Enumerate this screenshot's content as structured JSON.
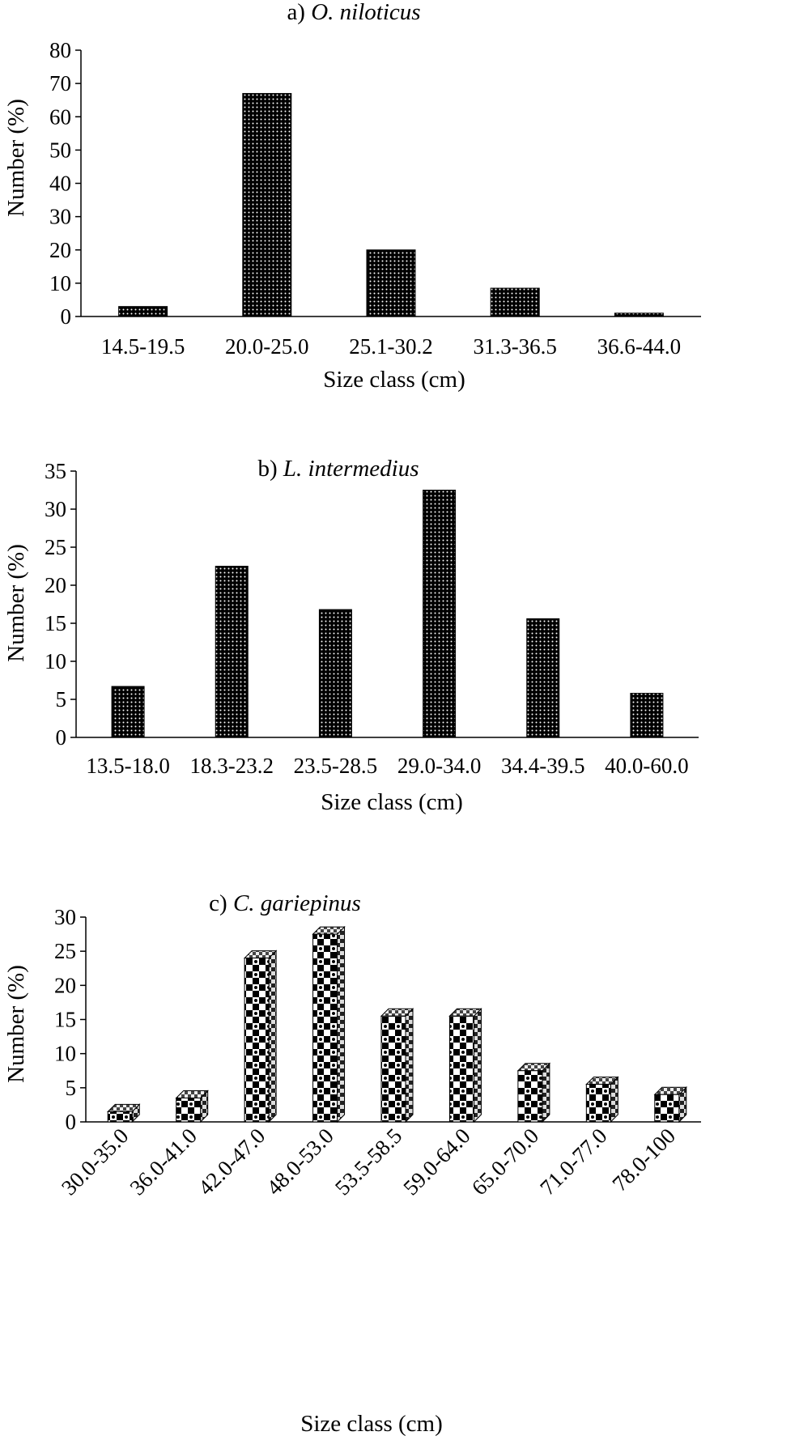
{
  "chart_data": [
    {
      "type": "bar",
      "title_prefix": "a) ",
      "title_species": "O. niloticus",
      "xlabel": "Size class (cm)",
      "ylabel": "Number (%)",
      "ylim": [
        0,
        80
      ],
      "yticks": [
        0,
        10,
        20,
        30,
        40,
        50,
        60,
        70,
        80
      ],
      "categories": [
        "14.5-19.5",
        "20.0-25.0",
        "25.1-30.2",
        "31.3-36.5",
        "36.6-44.0"
      ],
      "values": [
        3,
        67,
        20,
        8.5,
        1
      ],
      "grid": false,
      "fill": "dotted-black"
    },
    {
      "type": "bar",
      "title_prefix": "b) ",
      "title_species": "L. intermedius",
      "xlabel": "Size class (cm)",
      "ylabel": "Number (%)",
      "ylim": [
        0,
        35
      ],
      "yticks": [
        0,
        5,
        10,
        15,
        20,
        25,
        30,
        35
      ],
      "categories": [
        "13.5-18.0",
        "18.3-23.2",
        "23.5-28.5",
        "29.0-34.0",
        "34.4-39.5",
        "40.0-60.0"
      ],
      "values": [
        6.7,
        22.5,
        16.8,
        32.5,
        15.6,
        5.8
      ],
      "grid": false,
      "fill": "dotted-black"
    },
    {
      "type": "bar",
      "style": "3d-column",
      "title_prefix": "c) ",
      "title_species": "C. gariepinus",
      "xlabel": "Size class (cm)",
      "ylabel": "Number (%)",
      "ylim": [
        0,
        30
      ],
      "yticks": [
        0,
        5,
        10,
        15,
        20,
        25,
        30
      ],
      "categories": [
        "30.0-35.0",
        "36.0-41.0",
        "42.0-47.0",
        "48.0-53.0",
        "53.5-58.5",
        "59.0-64.0",
        "65.0-70.0",
        "71.0-77.0",
        "78.0-100"
      ],
      "values": [
        1.5,
        3.5,
        24,
        27.5,
        15.5,
        15.5,
        7.5,
        5.5,
        4.0
      ],
      "grid": false,
      "fill": "checkered-black-white"
    }
  ]
}
